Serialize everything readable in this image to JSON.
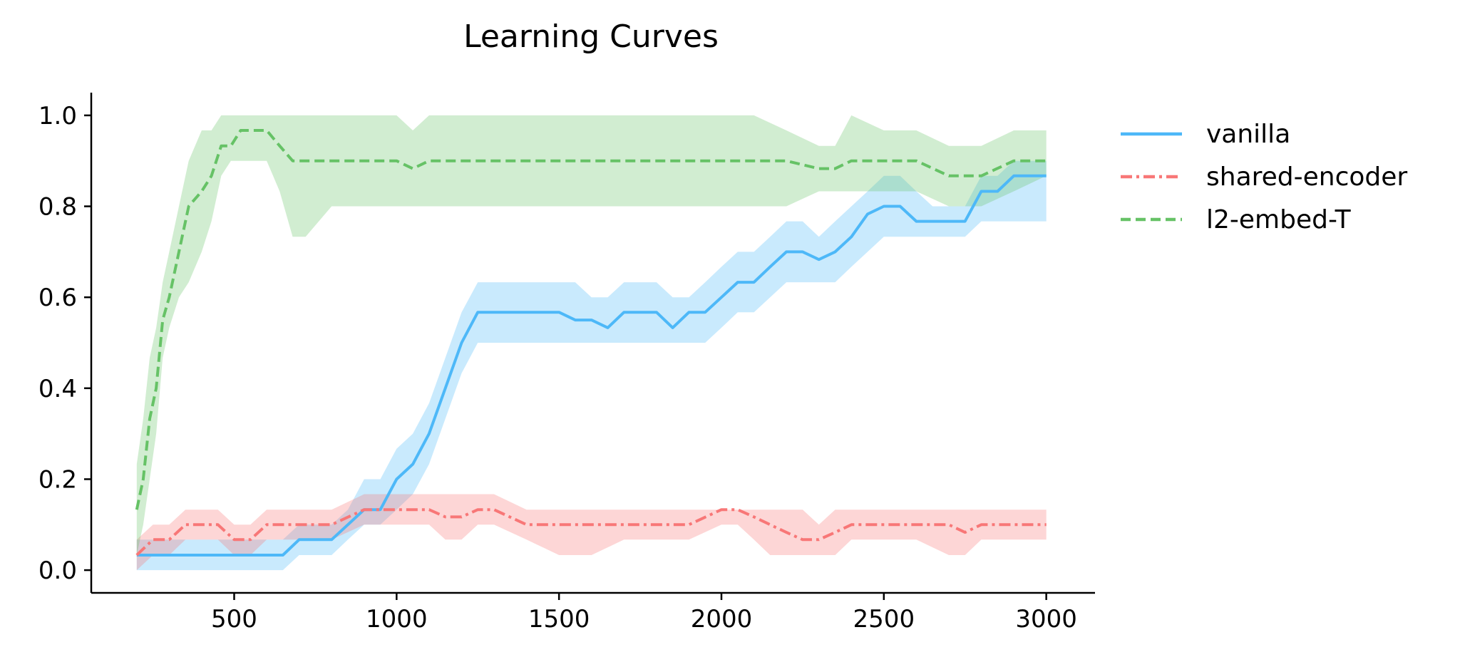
{
  "chart_data": {
    "type": "line",
    "title": "Learning Curves",
    "xlabel": "",
    "ylabel": "",
    "xlim": [
      60,
      3150
    ],
    "ylim": [
      -0.05,
      1.05
    ],
    "xticks": [
      500,
      1000,
      1500,
      2000,
      2500,
      3000
    ],
    "yticks": [
      0.0,
      0.2,
      0.4,
      0.6,
      0.8,
      1.0
    ],
    "xtick_labels": [
      "500",
      "1000",
      "1500",
      "2000",
      "2500",
      "3000"
    ],
    "ytick_labels": [
      "0.0",
      "0.2",
      "0.4",
      "0.6",
      "0.8",
      "1.0"
    ],
    "grid": false,
    "legend_position": "outside-right-top",
    "series": [
      {
        "name": "vanilla",
        "color": "#4db8f8",
        "dash": "solid",
        "x": [
          200,
          300,
          400,
          500,
          600,
          650,
          700,
          800,
          850,
          900,
          950,
          1000,
          1050,
          1100,
          1150,
          1200,
          1250,
          1300,
          1400,
          1500,
          1550,
          1600,
          1650,
          1700,
          1750,
          1800,
          1850,
          1900,
          1950,
          2000,
          2050,
          2100,
          2150,
          2200,
          2250,
          2300,
          2350,
          2400,
          2450,
          2500,
          2550,
          2600,
          2650,
          2700,
          2750,
          2800,
          2850,
          2900,
          2950,
          3000
        ],
        "y": [
          0.033,
          0.033,
          0.033,
          0.033,
          0.033,
          0.033,
          0.067,
          0.067,
          0.1,
          0.133,
          0.133,
          0.2,
          0.233,
          0.3,
          0.4,
          0.5,
          0.567,
          0.567,
          0.567,
          0.567,
          0.55,
          0.55,
          0.533,
          0.567,
          0.567,
          0.567,
          0.533,
          0.567,
          0.567,
          0.6,
          0.633,
          0.633,
          0.667,
          0.7,
          0.7,
          0.683,
          0.7,
          0.733,
          0.783,
          0.8,
          0.8,
          0.767,
          0.767,
          0.767,
          0.767,
          0.833,
          0.833,
          0.867,
          0.867,
          0.867
        ],
        "lower": [
          0.0,
          0.0,
          0.0,
          0.0,
          0.0,
          0.0,
          0.033,
          0.033,
          0.067,
          0.1,
          0.1,
          0.133,
          0.167,
          0.233,
          0.333,
          0.433,
          0.5,
          0.5,
          0.5,
          0.5,
          0.5,
          0.5,
          0.5,
          0.5,
          0.5,
          0.5,
          0.5,
          0.5,
          0.5,
          0.533,
          0.567,
          0.567,
          0.6,
          0.633,
          0.633,
          0.633,
          0.633,
          0.667,
          0.7,
          0.733,
          0.733,
          0.733,
          0.733,
          0.733,
          0.733,
          0.767,
          0.767,
          0.767,
          0.767,
          0.767
        ],
        "upper": [
          0.067,
          0.067,
          0.067,
          0.067,
          0.067,
          0.067,
          0.1,
          0.1,
          0.133,
          0.2,
          0.2,
          0.267,
          0.3,
          0.367,
          0.467,
          0.567,
          0.633,
          0.633,
          0.633,
          0.633,
          0.633,
          0.6,
          0.6,
          0.633,
          0.633,
          0.633,
          0.6,
          0.6,
          0.633,
          0.667,
          0.7,
          0.7,
          0.733,
          0.767,
          0.767,
          0.733,
          0.767,
          0.8,
          0.833,
          0.867,
          0.867,
          0.833,
          0.8,
          0.8,
          0.8,
          0.867,
          0.867,
          0.9,
          0.9,
          0.9
        ]
      },
      {
        "name": "shared-encoder",
        "color": "#f87777",
        "dash": "dashdot",
        "x": [
          200,
          250,
          300,
          350,
          400,
          450,
          500,
          550,
          600,
          700,
          800,
          900,
          1000,
          1100,
          1150,
          1200,
          1250,
          1300,
          1400,
          1500,
          1600,
          1700,
          1800,
          1900,
          2000,
          2050,
          2100,
          2150,
          2200,
          2250,
          2300,
          2350,
          2400,
          2500,
          2600,
          2700,
          2750,
          2800,
          2900,
          3000
        ],
        "y": [
          0.033,
          0.067,
          0.067,
          0.1,
          0.1,
          0.1,
          0.067,
          0.067,
          0.1,
          0.1,
          0.1,
          0.133,
          0.133,
          0.133,
          0.117,
          0.117,
          0.133,
          0.133,
          0.1,
          0.1,
          0.1,
          0.1,
          0.1,
          0.1,
          0.133,
          0.133,
          0.117,
          0.1,
          0.083,
          0.067,
          0.067,
          0.083,
          0.1,
          0.1,
          0.1,
          0.1,
          0.083,
          0.1,
          0.1,
          0.1
        ],
        "lower": [
          0.0,
          0.033,
          0.033,
          0.067,
          0.067,
          0.067,
          0.033,
          0.033,
          0.067,
          0.067,
          0.067,
          0.1,
          0.1,
          0.1,
          0.067,
          0.067,
          0.1,
          0.1,
          0.067,
          0.033,
          0.033,
          0.067,
          0.067,
          0.067,
          0.1,
          0.1,
          0.067,
          0.033,
          0.033,
          0.033,
          0.033,
          0.033,
          0.067,
          0.067,
          0.067,
          0.033,
          0.033,
          0.067,
          0.067,
          0.067
        ],
        "upper": [
          0.067,
          0.1,
          0.1,
          0.133,
          0.133,
          0.133,
          0.1,
          0.1,
          0.133,
          0.133,
          0.133,
          0.167,
          0.167,
          0.167,
          0.167,
          0.167,
          0.167,
          0.167,
          0.133,
          0.133,
          0.133,
          0.133,
          0.133,
          0.133,
          0.133,
          0.133,
          0.133,
          0.133,
          0.133,
          0.133,
          0.1,
          0.133,
          0.133,
          0.133,
          0.133,
          0.133,
          0.133,
          0.133,
          0.133,
          0.133
        ]
      },
      {
        "name": "l2-embed-T",
        "color": "#66c266",
        "dash": "dashed",
        "x": [
          200,
          220,
          240,
          260,
          280,
          300,
          330,
          360,
          400,
          430,
          460,
          490,
          520,
          560,
          600,
          640,
          680,
          720,
          800,
          900,
          1000,
          1050,
          1100,
          1200,
          1300,
          1400,
          1500,
          1600,
          1700,
          1800,
          1900,
          2000,
          2100,
          2200,
          2300,
          2350,
          2400,
          2500,
          2600,
          2700,
          2800,
          2900,
          3000
        ],
        "y": [
          0.133,
          0.2,
          0.333,
          0.4,
          0.55,
          0.6,
          0.7,
          0.8,
          0.833,
          0.867,
          0.933,
          0.933,
          0.967,
          0.967,
          0.967,
          0.933,
          0.9,
          0.9,
          0.9,
          0.9,
          0.9,
          0.883,
          0.9,
          0.9,
          0.9,
          0.9,
          0.9,
          0.9,
          0.9,
          0.9,
          0.9,
          0.9,
          0.9,
          0.9,
          0.883,
          0.883,
          0.9,
          0.9,
          0.9,
          0.867,
          0.867,
          0.9,
          0.9
        ],
        "lower": [
          0.033,
          0.1,
          0.2,
          0.3,
          0.467,
          0.533,
          0.6,
          0.633,
          0.7,
          0.767,
          0.867,
          0.9,
          0.9,
          0.9,
          0.9,
          0.833,
          0.733,
          0.733,
          0.8,
          0.8,
          0.8,
          0.8,
          0.8,
          0.8,
          0.8,
          0.8,
          0.8,
          0.8,
          0.8,
          0.8,
          0.8,
          0.8,
          0.8,
          0.8,
          0.833,
          0.833,
          0.833,
          0.833,
          0.833,
          0.8,
          0.8,
          0.833,
          0.867
        ],
        "upper": [
          0.233,
          0.333,
          0.467,
          0.533,
          0.633,
          0.7,
          0.8,
          0.9,
          0.967,
          0.967,
          1.0,
          1.0,
          1.0,
          1.0,
          1.0,
          1.0,
          1.0,
          1.0,
          1.0,
          1.0,
          1.0,
          0.967,
          1.0,
          1.0,
          1.0,
          1.0,
          1.0,
          1.0,
          1.0,
          1.0,
          1.0,
          1.0,
          1.0,
          0.967,
          0.933,
          0.933,
          1.0,
          0.967,
          0.967,
          0.933,
          0.933,
          0.967,
          0.967
        ]
      }
    ]
  }
}
